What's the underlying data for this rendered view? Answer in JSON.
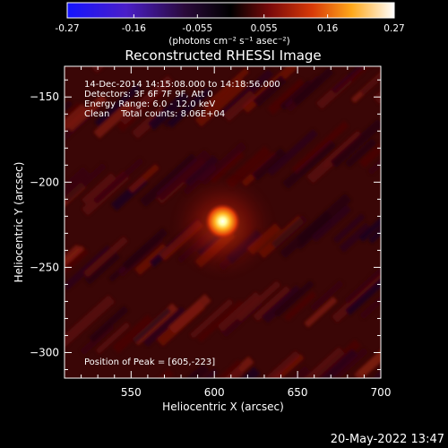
{
  "colorbar": {
    "tick_labels": [
      "-0.27",
      "-0.16",
      "-0.055",
      "0.055",
      "0.16",
      "0.27"
    ],
    "tick_values": [
      -0.27,
      -0.16,
      -0.055,
      0.055,
      0.16,
      0.27
    ],
    "range": [
      -0.27,
      0.27
    ],
    "colormap": "blue-purple-black-red-orange-yellow-white",
    "unit_label": "(photons cm⁻² s⁻¹ asec⁻²)"
  },
  "chart_data": {
    "type": "heatmap",
    "title": "Reconstructed RHESSI Image",
    "xlabel": "Heliocentric X (arcsec)",
    "ylabel": "Heliocentric Y (arcsec)",
    "xlim": [
      510,
      700
    ],
    "ylim": [
      -315,
      -132
    ],
    "xticks": [
      550,
      600,
      650,
      700
    ],
    "xtick_labels": [
      "550",
      "600",
      "650",
      "700"
    ],
    "yticks": [
      -150,
      -200,
      -250,
      -300
    ],
    "ytick_labels": [
      "−150",
      "−200",
      "−250",
      "−300"
    ],
    "peak": {
      "x": 605,
      "y": -223,
      "value": 0.27
    },
    "annotations": [
      "14-Dec-2014 14:15:08.000 to 14:18:56.000",
      "Detectors: 3F 6F 7F 9F, Att 0",
      "Energy Range: 6.0 - 12.0 keV",
      "Clean    Total counts: 8.06E+04"
    ],
    "peak_label": "Position of Peak = [605,-223]"
  },
  "footer": {
    "timestamp": "20-May-2022 13:47"
  }
}
